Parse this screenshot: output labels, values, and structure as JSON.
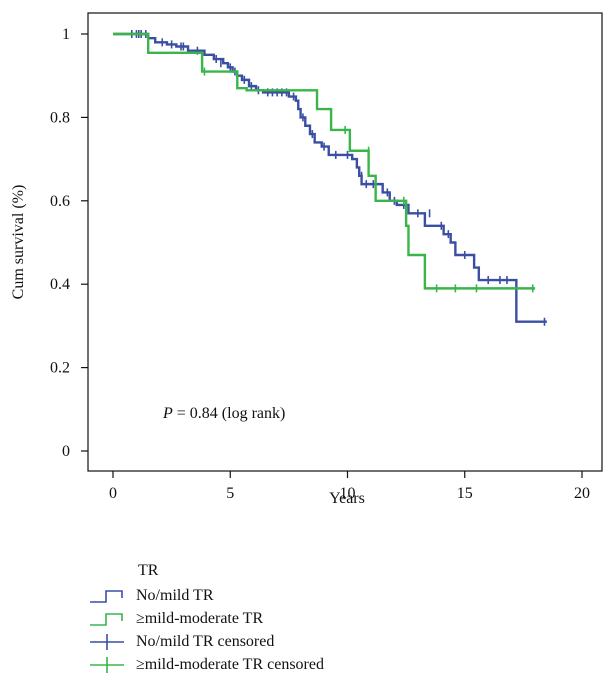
{
  "chart_data": {
    "type": "line",
    "title": "",
    "xlabel": "Years",
    "ylabel": "Cum survival (%)",
    "xlim": [
      0,
      20
    ],
    "ylim": [
      0,
      1
    ],
    "x_ticks": [
      "0",
      "5",
      "10",
      "15",
      "20"
    ],
    "y_ticks": [
      "0",
      "0.2",
      "0.4",
      "0.6",
      "0.8",
      "1"
    ],
    "annotation": {
      "p_label": "P",
      "rest": " = 0.84 (log rank)"
    },
    "series": [
      {
        "name": "No/mild TR",
        "color": "#3a4fa3",
        "steps": [
          [
            0,
            1.0
          ],
          [
            1.5,
            0.99
          ],
          [
            1.8,
            0.98
          ],
          [
            2.3,
            0.975
          ],
          [
            2.7,
            0.97
          ],
          [
            3.2,
            0.96
          ],
          [
            3.9,
            0.95
          ],
          [
            4.3,
            0.94
          ],
          [
            4.7,
            0.93
          ],
          [
            4.9,
            0.92
          ],
          [
            5.1,
            0.91
          ],
          [
            5.3,
            0.9
          ],
          [
            5.5,
            0.89
          ],
          [
            5.8,
            0.875
          ],
          [
            6.1,
            0.865
          ],
          [
            6.4,
            0.86
          ],
          [
            7.5,
            0.85
          ],
          [
            7.8,
            0.84
          ],
          [
            7.9,
            0.82
          ],
          [
            8.0,
            0.8
          ],
          [
            8.2,
            0.78
          ],
          [
            8.4,
            0.76
          ],
          [
            8.6,
            0.74
          ],
          [
            8.9,
            0.73
          ],
          [
            9.2,
            0.71
          ],
          [
            10.2,
            0.7
          ],
          [
            10.4,
            0.68
          ],
          [
            10.5,
            0.66
          ],
          [
            10.6,
            0.64
          ],
          [
            11.5,
            0.62
          ],
          [
            11.8,
            0.6
          ],
          [
            12.1,
            0.59
          ],
          [
            12.6,
            0.57
          ],
          [
            13.3,
            0.54
          ],
          [
            14.1,
            0.52
          ],
          [
            14.4,
            0.5
          ],
          [
            14.6,
            0.47
          ],
          [
            15.4,
            0.44
          ],
          [
            15.6,
            0.41
          ],
          [
            17.2,
            0.31
          ],
          [
            18.5,
            0.31
          ]
        ],
        "censored": [
          [
            0.8,
            1.0
          ],
          [
            1.0,
            1.0
          ],
          [
            1.1,
            1.0
          ],
          [
            1.2,
            1.0
          ],
          [
            1.4,
            1.0
          ],
          [
            2.1,
            0.98
          ],
          [
            2.5,
            0.975
          ],
          [
            2.9,
            0.97
          ],
          [
            3.0,
            0.97
          ],
          [
            3.6,
            0.96
          ],
          [
            4.4,
            0.94
          ],
          [
            4.6,
            0.93
          ],
          [
            5.0,
            0.92
          ],
          [
            5.2,
            0.91
          ],
          [
            5.6,
            0.89
          ],
          [
            5.9,
            0.875
          ],
          [
            6.2,
            0.865
          ],
          [
            6.6,
            0.86
          ],
          [
            6.8,
            0.86
          ],
          [
            7.0,
            0.86
          ],
          [
            7.2,
            0.86
          ],
          [
            7.4,
            0.86
          ],
          [
            7.7,
            0.85
          ],
          [
            8.1,
            0.8
          ],
          [
            8.5,
            0.76
          ],
          [
            9.0,
            0.73
          ],
          [
            9.5,
            0.71
          ],
          [
            10.0,
            0.71
          ],
          [
            10.6,
            0.66
          ],
          [
            10.8,
            0.64
          ],
          [
            11.1,
            0.64
          ],
          [
            11.7,
            0.62
          ],
          [
            12.0,
            0.6
          ],
          [
            12.4,
            0.59
          ],
          [
            13.0,
            0.57
          ],
          [
            13.5,
            0.57
          ],
          [
            14.0,
            0.54
          ],
          [
            14.3,
            0.52
          ],
          [
            15.0,
            0.47
          ],
          [
            16.0,
            0.41
          ],
          [
            16.5,
            0.41
          ],
          [
            16.8,
            0.41
          ],
          [
            18.4,
            0.31
          ]
        ]
      },
      {
        "name": "≥mild-moderate TR",
        "color": "#39b54a",
        "steps": [
          [
            0,
            1.0
          ],
          [
            1.5,
            0.955
          ],
          [
            3.8,
            0.91
          ],
          [
            5.3,
            0.87
          ],
          [
            5.7,
            0.865
          ],
          [
            8.7,
            0.82
          ],
          [
            9.3,
            0.77
          ],
          [
            10.1,
            0.72
          ],
          [
            10.9,
            0.66
          ],
          [
            11.2,
            0.6
          ],
          [
            12.5,
            0.54
          ],
          [
            12.6,
            0.47
          ],
          [
            13.3,
            0.39
          ],
          [
            18.0,
            0.39
          ]
        ],
        "censored": [
          [
            3.9,
            0.91
          ],
          [
            9.9,
            0.77
          ],
          [
            10.9,
            0.72
          ],
          [
            12.4,
            0.6
          ],
          [
            13.8,
            0.39
          ],
          [
            14.6,
            0.39
          ],
          [
            15.5,
            0.39
          ],
          [
            17.9,
            0.39
          ]
        ]
      }
    ]
  },
  "legend": {
    "title": "TR",
    "items": [
      {
        "label": "No/mild TR",
        "kind": "step",
        "color": "#3a4fa3"
      },
      {
        "label": "≥mild-moderate TR",
        "kind": "step",
        "color": "#39b54a"
      },
      {
        "label": "No/mild TR censored",
        "kind": "cross",
        "color": "#3a4fa3"
      },
      {
        "label": "≥mild-moderate TR censored",
        "kind": "cross",
        "color": "#39b54a"
      }
    ]
  }
}
